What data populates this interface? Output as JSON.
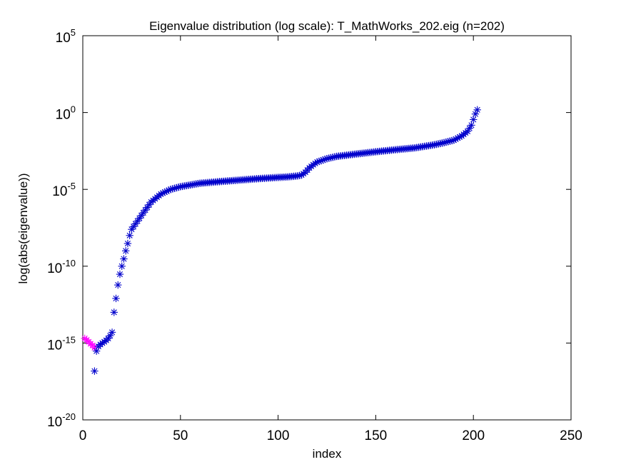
{
  "chart_data": {
    "type": "scatter",
    "title": "Eigenvalue distribution (log scale): T_MathWorks_202.eig (n=202)",
    "xlabel": "index",
    "ylabel": "log(abs(eigenvalue))",
    "xlim": [
      0,
      250
    ],
    "ylim_log10": [
      -20,
      5
    ],
    "y_scale": "log",
    "grid": false,
    "legend": "none",
    "marker": "*",
    "x_ticks": [
      {
        "value": 0,
        "label": "0"
      },
      {
        "value": 50,
        "label": "50"
      },
      {
        "value": 100,
        "label": "100"
      },
      {
        "value": 150,
        "label": "150"
      },
      {
        "value": 200,
        "label": "200"
      },
      {
        "value": 250,
        "label": "250"
      }
    ],
    "y_ticks": [
      {
        "value": "1e5",
        "base": "10",
        "exp": "5"
      },
      {
        "value": "1e0",
        "base": "10",
        "exp": "0"
      },
      {
        "value": "1e-5",
        "base": "10",
        "exp": "-5"
      },
      {
        "value": "1e-10",
        "base": "10",
        "exp": "-10"
      },
      {
        "value": "1e-15",
        "base": "10",
        "exp": "-15"
      },
      {
        "value": "1e-20",
        "base": "10",
        "exp": "-20"
      }
    ],
    "series": [
      {
        "color": "#ff00ff",
        "points": [
          [
            1,
            2e-15
          ],
          [
            2,
            1.6e-15
          ],
          [
            3,
            1.2e-15
          ],
          [
            4,
            9e-16
          ],
          [
            5,
            7e-16
          ],
          [
            6,
            5e-16
          ]
        ]
      },
      {
        "color": "#0000cc",
        "points": [
          [
            6,
            1.5e-17
          ],
          [
            7,
            3e-16
          ],
          [
            8,
            6e-16
          ],
          [
            9,
            8e-16
          ],
          [
            10,
            1e-15
          ],
          [
            11,
            1.2e-15
          ],
          [
            12,
            1.5e-15
          ],
          [
            13,
            2e-15
          ],
          [
            14,
            3e-15
          ],
          [
            15,
            5e-15
          ],
          [
            16,
            1e-13
          ],
          [
            17,
            8e-13
          ],
          [
            18,
            6e-12
          ],
          [
            19,
            3e-11
          ],
          [
            20,
            1e-10
          ],
          [
            21,
            3e-10
          ],
          [
            22,
            1e-09
          ],
          [
            23,
            3e-09
          ],
          [
            24,
            1e-08
          ],
          [
            25,
            2.5e-08
          ],
          [
            30,
            2e-07
          ],
          [
            35,
            1.5e-06
          ],
          [
            40,
            5e-06
          ],
          [
            45,
            1e-05
          ],
          [
            50,
            1.5e-05
          ],
          [
            60,
            2.5e-05
          ],
          [
            70,
            3.2e-05
          ],
          [
            80,
            4e-05
          ],
          [
            90,
            5e-05
          ],
          [
            100,
            6e-05
          ],
          [
            105,
            6.5e-05
          ],
          [
            110,
            7.5e-05
          ],
          [
            112,
            8.5e-05
          ],
          [
            114,
            0.00013
          ],
          [
            116,
            0.00025
          ],
          [
            118,
            0.0004
          ],
          [
            120,
            0.0006
          ],
          [
            125,
            0.001
          ],
          [
            130,
            0.0014
          ],
          [
            140,
            0.002
          ],
          [
            150,
            0.0028
          ],
          [
            160,
            0.0038
          ],
          [
            170,
            0.005
          ],
          [
            180,
            0.008
          ],
          [
            185,
            0.011
          ],
          [
            190,
            0.016
          ],
          [
            194,
            0.03
          ],
          [
            197,
            0.06
          ],
          [
            199,
            0.15
          ],
          [
            200,
            0.35
          ],
          [
            201,
            0.8
          ],
          [
            202,
            1.5
          ]
        ]
      }
    ]
  }
}
